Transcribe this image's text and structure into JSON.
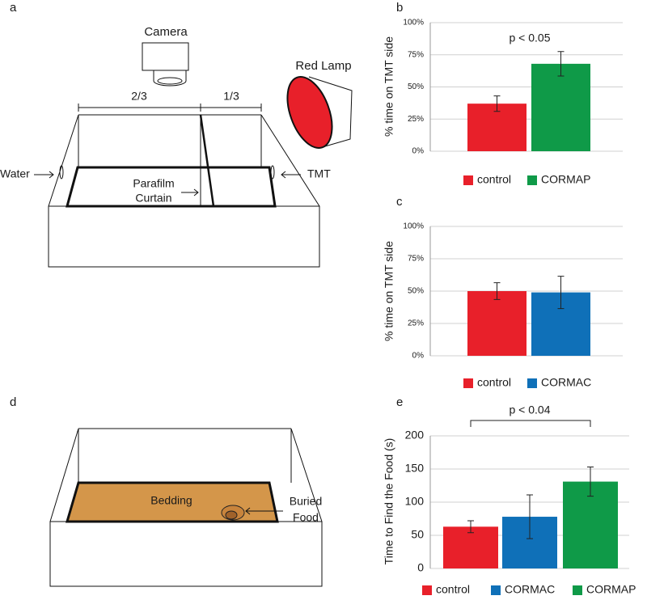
{
  "diagrams": {
    "a": {
      "label": "a",
      "camera": "Camera",
      "lamp": "Red Lamp",
      "left_fraction": "2/3",
      "right_fraction": "1/3",
      "water": "Water",
      "tmt": "TMT",
      "curtain_line1": "Parafilm",
      "curtain_line2": "Curtain"
    },
    "d": {
      "label": "d",
      "bedding": "Bedding",
      "food_line1": "Buried",
      "food_line2": "Food"
    }
  },
  "chart_data": [
    {
      "type": "bar",
      "panel": "b",
      "ylabel": "% time on TMT side",
      "annotation": "p <  0.05",
      "categories": [
        "control",
        "CORMAP"
      ],
      "values": [
        37,
        68
      ],
      "errors": [
        6,
        9.5
      ],
      "colors": [
        "#e8202a",
        "#0f9a48"
      ],
      "ylim": [
        0,
        100
      ],
      "yticks": [
        {
          "value": 0,
          "label": "0%"
        },
        {
          "value": 25,
          "label": "25%"
        },
        {
          "value": 50,
          "label": "50%"
        },
        {
          "value": 75,
          "label": "75%"
        },
        {
          "value": 100,
          "label": "100%"
        }
      ],
      "grid": true
    },
    {
      "type": "bar",
      "panel": "c",
      "ylabel": "% time on TMT side",
      "categories": [
        "control",
        "CORMAC"
      ],
      "values": [
        50,
        49
      ],
      "errors": [
        6.5,
        12.5
      ],
      "colors": [
        "#e8202a",
        "#0f70b8"
      ],
      "ylim": [
        0,
        100
      ],
      "yticks": [
        {
          "value": 0,
          "label": "0%"
        },
        {
          "value": 25,
          "label": "25%"
        },
        {
          "value": 50,
          "label": "50%"
        },
        {
          "value": 75,
          "label": "75%"
        },
        {
          "value": 100,
          "label": "100%"
        }
      ],
      "grid": true
    },
    {
      "type": "bar",
      "panel": "e",
      "ylabel": "Time to Find the Food (s)",
      "annotation": "p <  0.04",
      "categories": [
        "control",
        "CORMAC",
        "CORMAP"
      ],
      "values": [
        63,
        78,
        131
      ],
      "errors": [
        9,
        33,
        22
      ],
      "colors": [
        "#e8202a",
        "#0f70b8",
        "#0f9a48"
      ],
      "ylim": [
        0,
        200
      ],
      "yticks": [
        0,
        50,
        100,
        150,
        200
      ],
      "grid": true
    }
  ]
}
